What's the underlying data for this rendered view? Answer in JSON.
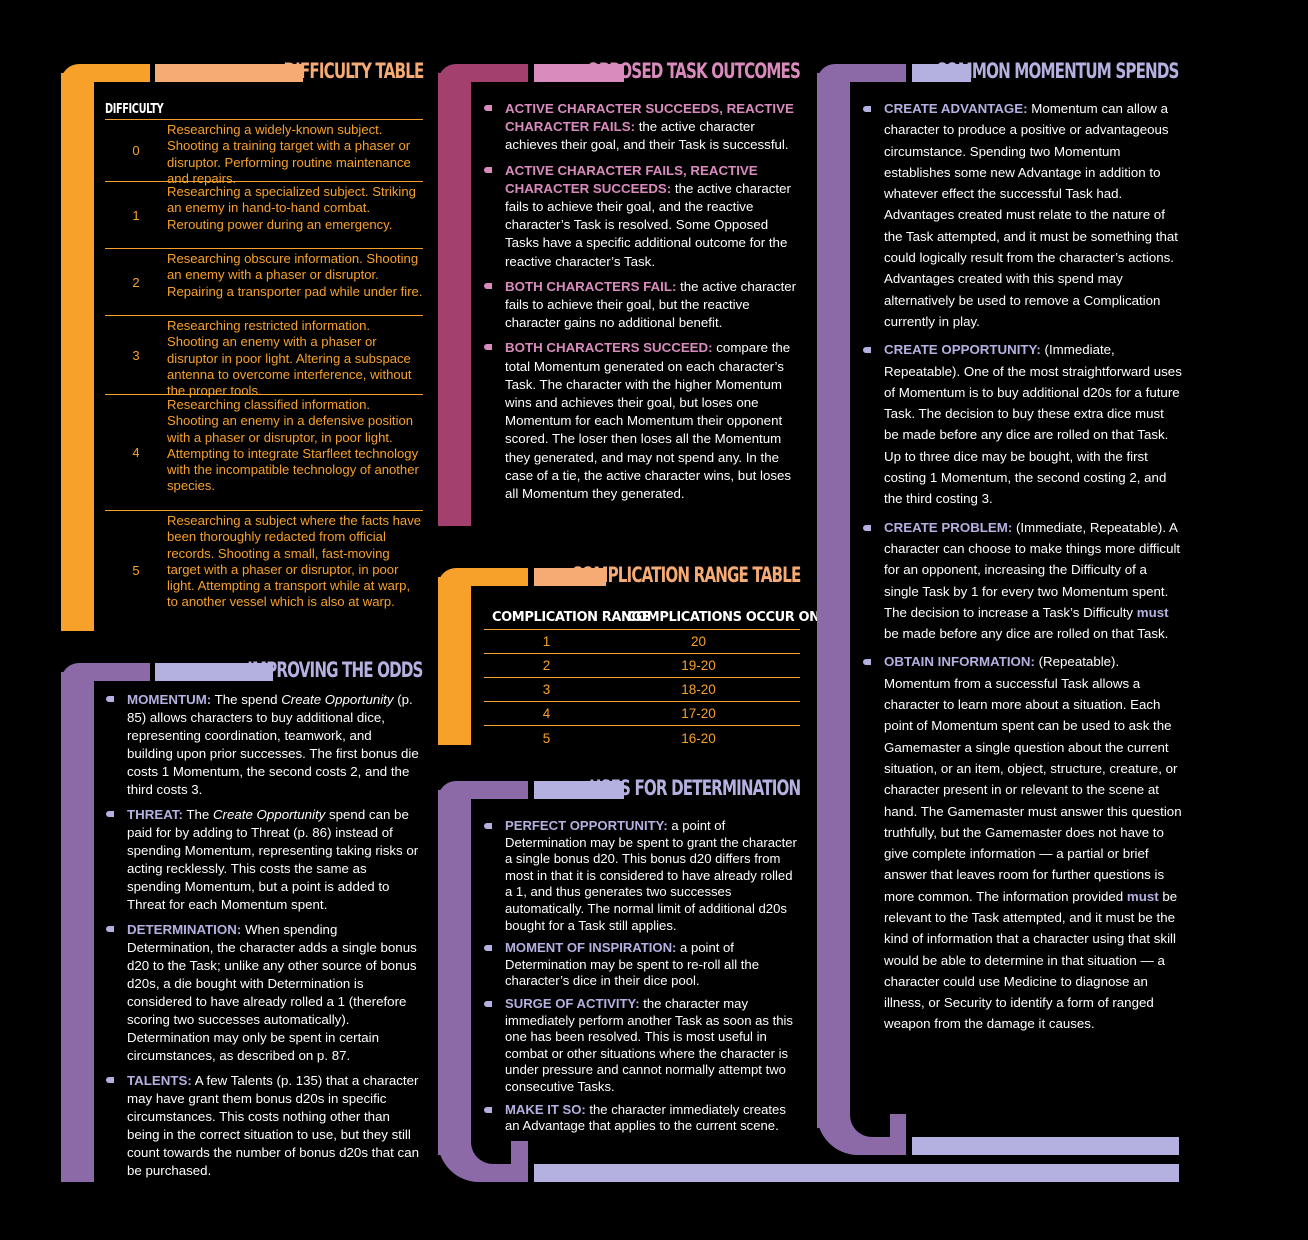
{
  "colors": {
    "orange": "#f7a12a",
    "peach": "#f7ab74",
    "lavender": "#8c6aa8",
    "lavender_light": "#b4b0e0",
    "magenta": "#a4406e",
    "pink": "#d98bbd",
    "term_lavender": "#b4b0e0",
    "term_pink": "#d98bbd"
  },
  "difficulty_table": {
    "title": "DIFFICULTY TABLE",
    "header": "DIFFICULTY",
    "rows": [
      {
        "level": "0",
        "text": "Researching a widely-known subject. Shooting a training target with a phaser or disruptor. Performing routine maintenance and repairs."
      },
      {
        "level": "1",
        "text": "Researching a specialized subject. Striking an enemy in hand-to-hand combat. Rerouting power during an emergency."
      },
      {
        "level": "2",
        "text": "Researching obscure information. Shooting an enemy with a phaser or disruptor. Repairing a transporter pad while under fire."
      },
      {
        "level": "3",
        "text": "Researching restricted information. Shooting an enemy with a phaser or disruptor in poor light. Altering a subspace antenna to overcome interference, without the proper tools."
      },
      {
        "level": "4",
        "text": "Researching classified information. Shooting an enemy in a defensive position with a phaser or disruptor, in poor light. Attempting to integrate Starfleet technology with the incompatible technology of another species."
      },
      {
        "level": "5",
        "text": "Researching a subject where the facts have been thoroughly redacted from official records. Shooting a small, fast-moving target with a phaser or disruptor, in poor light. Attempting a transport while at warp, to another vessel which is also at warp."
      }
    ]
  },
  "improving_odds": {
    "title": "IMPROVING THE ODDS",
    "items": [
      {
        "term": "MOMENTUM:",
        "text_a": " The spend ",
        "em": "Create Opportunity",
        "text_b": " (p. 85) allows characters to buy additional dice, representing coordination, teamwork, and building upon prior successes. The first bonus die costs 1 Momentum, the second costs 2, and the third costs 3."
      },
      {
        "term": "THREAT:",
        "text_a": " The ",
        "em": "Create Opportunity",
        "text_b": " spend can be paid for by adding to Threat (p. 86) instead of spending Momentum, representing taking risks or acting recklessly. This costs the same as spending Momentum, but a point is added to Threat for each Momentum spent."
      },
      {
        "term": "DETERMINATION:",
        "text_a": " When spending Determination, the character adds a single bonus d20 to the Task; unlike any other source of bonus d20s, a die bought with Determination is considered to have already rolled a 1 (therefore scoring two successes automatically). Determination may only be spent in certain circumstances, as described on p. 87.",
        "em": "",
        "text_b": ""
      },
      {
        "term": "TALENTS:",
        "text_a": " A few Talents (p. 135) that a character may have grant them bonus d20s in specific circumstances. This costs nothing other than being in the correct situation to use, but they still count towards the number of bonus d20s that can be purchased.",
        "em": "",
        "text_b": ""
      }
    ]
  },
  "opposed_task_outcomes": {
    "title": "OPPOSED TASK OUTCOMES",
    "items": [
      {
        "term": "ACTIVE CHARACTER SUCCEEDS, REACTIVE CHARACTER FAILS:",
        "text": " the active character achieves their goal, and their Task is successful."
      },
      {
        "term": "ACTIVE CHARACTER FAILS, REACTIVE CHARACTER SUCCEEDS:",
        "text": " the active character fails to achieve their goal, and the reactive character’s Task is resolved. Some Opposed Tasks have a specific additional outcome for the reactive character’s Task."
      },
      {
        "term": "BOTH CHARACTERS FAIL:",
        "text": " the active character fails to achieve their goal, but the reactive character gains no additional benefit."
      },
      {
        "term": "BOTH CHARACTERS SUCCEED:",
        "text": " compare the total Momentum generated on each character’s Task. The character with the higher Momentum wins and achieves their goal, but loses one Momentum for each Momentum their opponent scored. The loser then loses all the Momentum they generated, and may not spend any. In the case of a tie, the active character wins, but loses all Momentum they generated."
      }
    ]
  },
  "complication_range_table": {
    "title": "COMPLICATION RANGE TABLE",
    "headers": [
      "COMPLICATION RANGE",
      "COMPLICATIONS OCCUR ON . . ."
    ],
    "rows": [
      [
        "1",
        "20"
      ],
      [
        "2",
        "19-20"
      ],
      [
        "3",
        "18-20"
      ],
      [
        "4",
        "17-20"
      ],
      [
        "5",
        "16-20"
      ]
    ]
  },
  "uses_for_determination": {
    "title": "USES FOR DETERMINATION",
    "items": [
      {
        "term": "PERFECT OPPORTUNITY:",
        "text": " a point of Determination may be spent to grant the character a single bonus d20. This bonus d20 differs from most in that it is considered to have already rolled a 1, and thus generates two successes automatically. The normal limit of additional d20s bought for a Task still applies."
      },
      {
        "term": "MOMENT OF INSPIRATION:",
        "text": " a point of Determination may be spent to re-roll all the character’s dice in their dice pool."
      },
      {
        "term": "SURGE OF ACTIVITY:",
        "text": " the character may immediately perform another Task as soon as this one has been resolved. This is most useful in combat or other situations where the character is under pressure and cannot normally attempt two consecutive Tasks."
      },
      {
        "term": "MAKE IT SO:",
        "text": " the character immediately creates an Advantage that applies to the current scene."
      }
    ]
  },
  "common_momentum_spends": {
    "title": "COMMON MOMENTUM SPENDS",
    "items": [
      {
        "term": "CREATE ADVANTAGE:",
        "text_a": " Momentum can allow a character to produce a positive or advantageous circumstance. Spending two Momentum establishes some new Advantage in addition to whatever effect the successful Task had. Advantages created must relate to the nature of the Task attempted, and it must be something that could logically result from the character’s actions. Advantages created with this spend may alternatively be used to remove a Complication currently in play.",
        "strong": "",
        "text_b": "",
        "strong2": "",
        "text_c": ""
      },
      {
        "term": "CREATE OPPORTUNITY:",
        "text_a": " (Immediate, Repeatable). One of the most straightforward uses of Momentum is to buy additional d20s for a future Task. The decision to buy these extra dice must be made before any dice are rolled on that Task. Up to three dice may be bought, with the first costing 1 Momentum, the second costing 2, and the third costing 3.",
        "strong": "",
        "text_b": "",
        "strong2": "",
        "text_c": ""
      },
      {
        "term": "CREATE PROBLEM:",
        "text_a": " (Immediate, Repeatable). A character can choose to make things more difficult for an opponent, increasing the Difficulty of a single Task by 1 for every two Momentum spent. The decision to increase a Task’s Difficulty ",
        "strong": "must",
        "text_b": " be made before any dice are rolled on that Task.",
        "strong2": "",
        "text_c": ""
      },
      {
        "term": "OBTAIN INFORMATION:",
        "text_a": " (Repeatable). Momentum from a successful Task allows a character to learn more about a situation. Each point of Momentum spent can be used to ask the Gamemaster a single question about the current situation, or an item, object, structure, creature, or character present in or relevant to the scene at hand. The Gamemaster must answer this question truthfully, but the Gamemaster does not have to give complete information — a partial or brief answer that leaves room for further questions is more common. The information provided ",
        "strong": "must",
        "text_b": " be relevant to the Task attempted, and it must be the kind of information that a character using that skill would be able to determine in that situation — a character could use Medicine to diagnose an illness, or Security to identify a form of ranged weapon from the damage it causes.",
        "strong2": "",
        "text_c": ""
      }
    ]
  }
}
